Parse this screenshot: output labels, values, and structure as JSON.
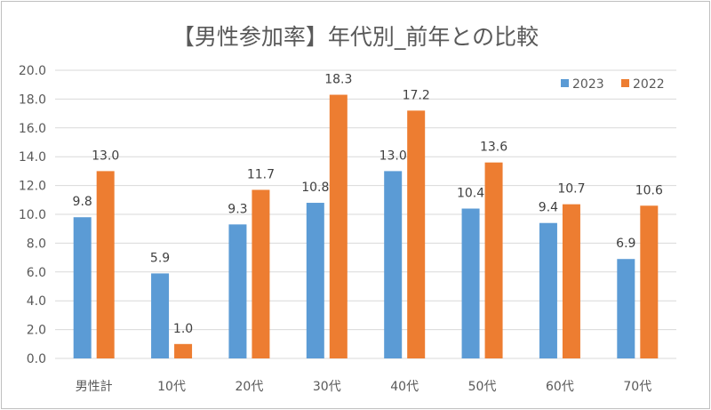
{
  "chart_data": {
    "type": "bar",
    "title": "【男性参加率】年代別_前年との比較",
    "categories": [
      "男性計",
      "10代",
      "20代",
      "30代",
      "40代",
      "50代",
      "60代",
      "70代"
    ],
    "series": [
      {
        "name": "2023",
        "color": "#5B9BD5",
        "values": [
          9.8,
          5.9,
          9.3,
          10.8,
          13.0,
          10.4,
          9.4,
          6.9
        ]
      },
      {
        "name": "2022",
        "color": "#ED7D31",
        "values": [
          13.0,
          1.0,
          11.7,
          18.3,
          17.2,
          13.6,
          10.7,
          10.6
        ]
      }
    ],
    "ylim": [
      0,
      20
    ],
    "yticks": [
      "0.0",
      "2.0",
      "4.0",
      "6.0",
      "8.0",
      "10.0",
      "12.0",
      "14.0",
      "16.0",
      "18.0",
      "20.0"
    ],
    "xlabel": "",
    "ylabel": "",
    "grid": true,
    "legend": "top-right"
  }
}
